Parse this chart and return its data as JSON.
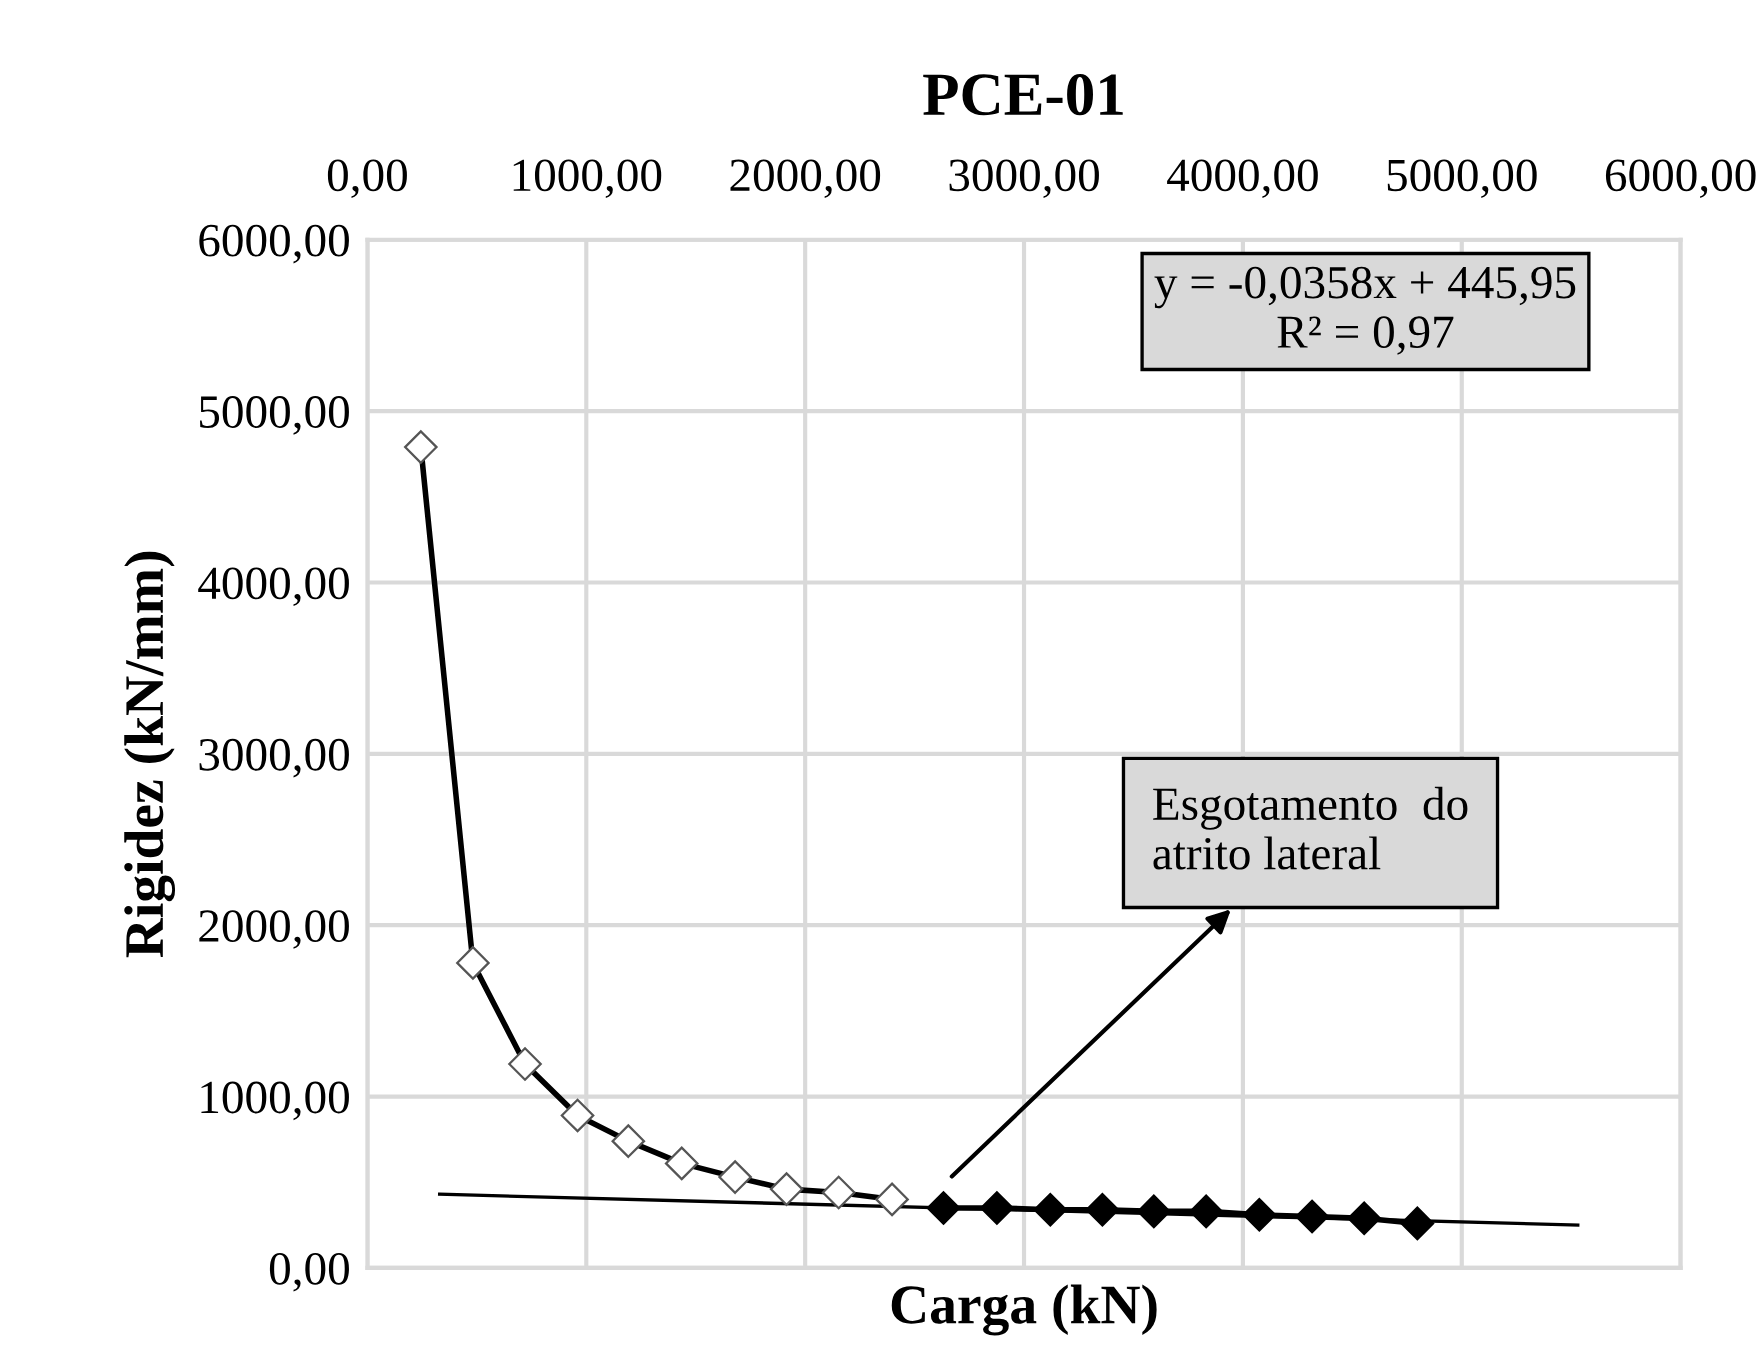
{
  "chart_data": {
    "type": "line",
    "title": "PCE-01",
    "xlabel": "Carga (kN)",
    "ylabel": "Rigidez (kN/mm)",
    "xlim": [
      0,
      6000
    ],
    "ylim": [
      0,
      6000
    ],
    "xticks": [
      {
        "value": 0,
        "label": "0,00"
      },
      {
        "value": 1000,
        "label": "1000,00"
      },
      {
        "value": 2000,
        "label": "2000,00"
      },
      {
        "value": 3000,
        "label": "3000,00"
      },
      {
        "value": 4000,
        "label": "4000,00"
      },
      {
        "value": 5000,
        "label": "5000,00"
      },
      {
        "value": 6000,
        "label": "6000,00"
      }
    ],
    "yticks": [
      {
        "value": 0,
        "label": "0,00"
      },
      {
        "value": 1000,
        "label": "1000,00"
      },
      {
        "value": 2000,
        "label": "2000,00"
      },
      {
        "value": 3000,
        "label": "3000,00"
      },
      {
        "value": 4000,
        "label": "4000,00"
      },
      {
        "value": 5000,
        "label": "5000,00"
      },
      {
        "value": 6000,
        "label": "6000,00"
      }
    ],
    "grid": true,
    "marker": "diamond",
    "line_style": "solid",
    "series": [
      {
        "color": "#000000",
        "x": [
          244,
          482,
          720,
          960,
          1192,
          1436,
          1680,
          1915,
          2153,
          2397
        ],
        "values": [
          4790,
          1780,
          1190,
          890,
          740,
          610,
          530,
          460,
          440,
          400
        ]
      },
      {
        "color": "#000000",
        "x": [
          2632,
          2876,
          3120,
          3358,
          3593,
          3832,
          4075,
          4316,
          4554,
          4797
        ],
        "values": [
          350,
          350,
          340,
          340,
          330,
          330,
          310,
          300,
          290,
          260
        ]
      },
      {
        "color": "#000000",
        "marker": "none",
        "x": [
          330,
          5530
        ],
        "values": [
          430,
          250
        ]
      }
    ],
    "annotations": [
      "y = -0,0358x + 445,95\nR² = 0,97",
      "Esgotamento  do\natrito lateral"
    ]
  }
}
